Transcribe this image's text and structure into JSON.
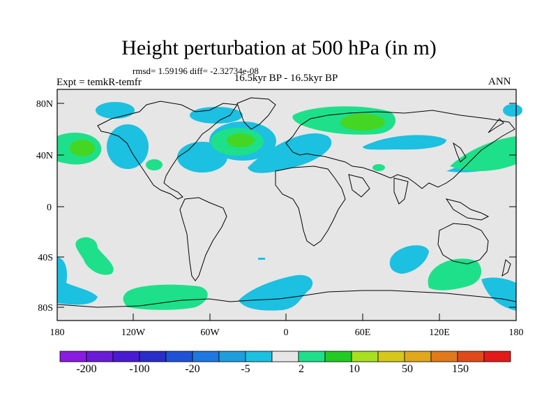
{
  "header": {
    "title": "Height perturbation at 500 hPa (in m)",
    "stats": "rmsd= 1.59196 diff= -2.32734e-08",
    "experiment": "Expt = temkR-temfr",
    "period": "16.5kyr BP - 16.5kyr BP",
    "season": "ANN"
  },
  "axes": {
    "y_ticks": [
      "80N",
      "40N",
      "0",
      "40S",
      "80S"
    ],
    "x_ticks": [
      "180",
      "120W",
      "60W",
      "0",
      "60E",
      "120E",
      "180"
    ]
  },
  "colorbar": {
    "colors": [
      "#8a1ce0",
      "#6a1bd8",
      "#4a1ad0",
      "#2a2dc8",
      "#1f52d8",
      "#1f78e0",
      "#1e9edc",
      "#1cc0e0",
      "#e6e6e6",
      "#1ee08a",
      "#22cc22",
      "#a6e01e",
      "#d6c81a",
      "#e0a81a",
      "#e07a1a",
      "#e04a1a",
      "#e41a1a"
    ],
    "labels": [
      "-200",
      "-100",
      "-20",
      "-5",
      "2",
      "10",
      "50",
      "150"
    ]
  },
  "map_colors": {
    "background": "#e6e6e6",
    "negative": "#1cc0e0",
    "positive_light": "#1ee08a",
    "positive_strong": "#44d622"
  }
}
